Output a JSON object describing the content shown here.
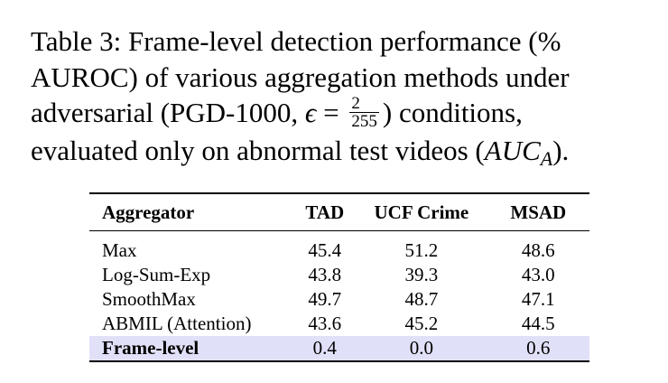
{
  "caption": {
    "line1": "Table 3: Frame-level detection performance (%",
    "line2": "AUROC) of various aggregation methods under",
    "line3_pre": "adversarial (PGD-1000, ",
    "epsilon": "ϵ",
    "equals": " = ",
    "frac_num": "2",
    "frac_den": "255",
    "line3_post": ") conditions,",
    "line4_pre": "evaluated only on abnormal test videos (",
    "auc": "AUC",
    "auc_sub": "A",
    "line4_post": ")."
  },
  "table": {
    "headers": [
      "Aggregator",
      "TAD",
      "UCF Crime",
      "MSAD"
    ],
    "rows": [
      [
        "Max",
        "45.4",
        "51.2",
        "48.6"
      ],
      [
        "Log-Sum-Exp",
        "43.8",
        "39.3",
        "43.0"
      ],
      [
        "SmoothMax",
        "49.7",
        "48.7",
        "47.1"
      ],
      [
        "ABMIL (Attention)",
        "43.6",
        "45.2",
        "44.5"
      ],
      [
        "Frame-level",
        "0.4",
        "0.0",
        "0.6"
      ]
    ],
    "highlight_color": "#e0e0f8"
  }
}
